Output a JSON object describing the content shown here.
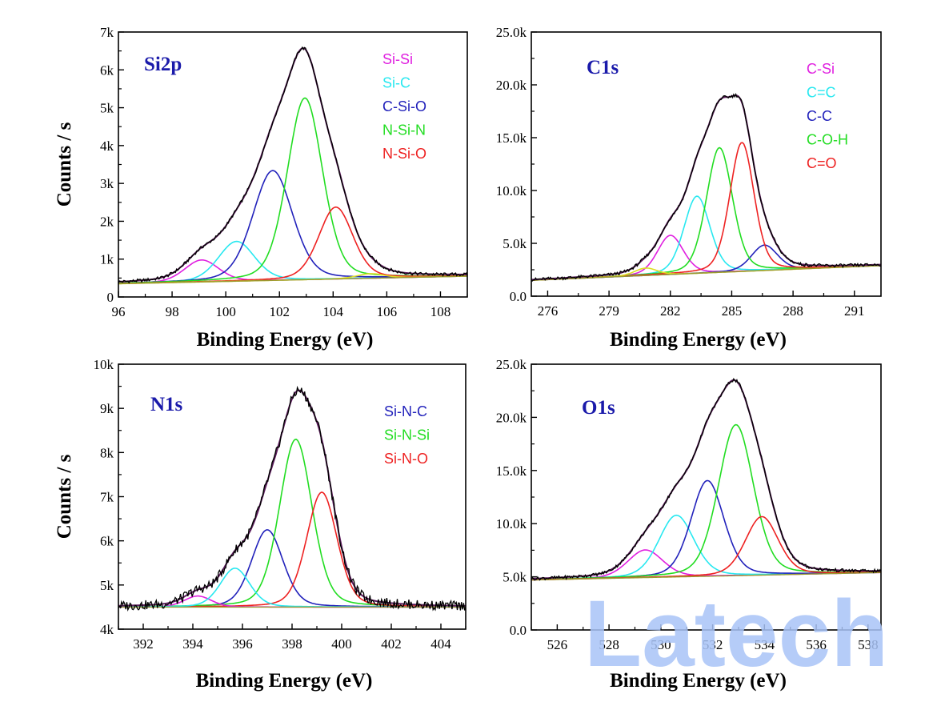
{
  "watermark": "Latech",
  "chart_data": [
    {
      "type": "line",
      "title": "Si2p",
      "xlabel": "Binding Energy (eV)",
      "ylabel": "Counts / s",
      "xlim": [
        96,
        109
      ],
      "ylim": [
        0,
        7000
      ],
      "x_ticks": [
        96,
        98,
        100,
        102,
        104,
        106,
        108
      ],
      "x_tick_labels": [
        "96",
        "98",
        "100",
        "102",
        "104",
        "106",
        "108"
      ],
      "y_ticks": [
        0,
        1000,
        2000,
        3000,
        4000,
        5000,
        6000,
        7000
      ],
      "y_tick_labels": [
        "0",
        "1k",
        "2k",
        "3k",
        "4k",
        "5k",
        "6k",
        "7k"
      ],
      "background": {
        "start": [
          96,
          350
        ],
        "end": [
          109,
          550
        ]
      },
      "series": [
        {
          "name": "Si-Si",
          "color": "#e020e0",
          "center": 99.1,
          "height": 580,
          "width": 1.5
        },
        {
          "name": "Si-C",
          "color": "#28e8f0",
          "center": 100.4,
          "height": 1050,
          "width": 1.6
        },
        {
          "name": "C-Si-O",
          "color": "#2222bb",
          "center": 101.75,
          "height": 2900,
          "width": 1.75
        },
        {
          "name": "N-Si-N",
          "color": "#22dd22",
          "center": 102.95,
          "height": 4800,
          "width": 1.55
        },
        {
          "name": "N-Si-O",
          "color": "#ee2222",
          "center": 104.1,
          "height": 1900,
          "width": 1.5
        }
      ],
      "extra_peaks": [
        {
          "color": "#dddd22",
          "center": 105.4,
          "height": 120,
          "width": 1.2
        }
      ],
      "legend_position": "top-right"
    },
    {
      "type": "line",
      "title": "C1s",
      "xlabel": "Binding Energy (eV)",
      "ylabel": "",
      "xlim": [
        275.2,
        292.3
      ],
      "ylim": [
        0,
        25000
      ],
      "x_ticks": [
        276,
        279,
        282,
        285,
        288,
        291
      ],
      "x_tick_labels": [
        "276",
        "279",
        "282",
        "285",
        "288",
        "291"
      ],
      "y_ticks": [
        0,
        5000,
        10000,
        15000,
        20000,
        25000
      ],
      "y_tick_labels": [
        "0.0",
        "5.0k",
        "10.0k",
        "15.0k",
        "20.0k",
        "25.0k"
      ],
      "background": {
        "start": [
          275.2,
          1500
        ],
        "end": [
          292.3,
          2900
        ]
      },
      "series": [
        {
          "name": "C-Si",
          "color": "#e020e0",
          "center": 282.0,
          "height": 3700,
          "width": 1.5
        },
        {
          "name": "C=C",
          "color": "#28e8f0",
          "center": 283.3,
          "height": 7300,
          "width": 1.5
        },
        {
          "name": "C-C",
          "color": "#2222bb",
          "center": 286.6,
          "height": 2400,
          "width": 1.5
        },
        {
          "name": "C-O-H",
          "color": "#22dd22",
          "center": 284.4,
          "height": 11800,
          "width": 1.5
        },
        {
          "name": "C=O",
          "color": "#ee2222",
          "center": 285.5,
          "height": 12200,
          "width": 1.4
        }
      ],
      "extra_peaks": [
        {
          "color": "#dddd22",
          "center": 280.8,
          "height": 700,
          "width": 1.3
        }
      ],
      "legend_position": "top-right"
    },
    {
      "type": "line",
      "title": "N1s",
      "xlabel": "Binding Energy (eV)",
      "ylabel": "Counts / s",
      "xlim": [
        391,
        405
      ],
      "ylim": [
        4000,
        10000
      ],
      "x_ticks": [
        392,
        394,
        396,
        398,
        400,
        402,
        404
      ],
      "x_tick_labels": [
        "392",
        "394",
        "396",
        "398",
        "400",
        "402",
        "404"
      ],
      "y_ticks": [
        4000,
        5000,
        6000,
        7000,
        8000,
        9000,
        10000
      ],
      "y_tick_labels": [
        "4k",
        "5k",
        "6k",
        "7k",
        "8k",
        "9k",
        "10k"
      ],
      "background": {
        "start": [
          391,
          4500
        ],
        "end": [
          405,
          4500
        ]
      },
      "series": [
        {
          "name": "Si-N-C",
          "color": "#2222bb",
          "center": 397.0,
          "height": 1750,
          "width": 1.5
        },
        {
          "name": "Si-N-Si",
          "color": "#22dd22",
          "center": 398.15,
          "height": 3800,
          "width": 1.55
        },
        {
          "name": "Si-N-O",
          "color": "#ee2222",
          "center": 399.2,
          "height": 2600,
          "width": 1.45
        }
      ],
      "extra_peaks": [
        {
          "color": "#e020e0",
          "center": 394.2,
          "height": 250,
          "width": 1.3
        },
        {
          "color": "#28e8f0",
          "center": 395.7,
          "height": 880,
          "width": 1.4
        }
      ],
      "legend_position": "top-right"
    },
    {
      "type": "line",
      "title": "O1s",
      "xlabel": "Binding Energy (eV)",
      "ylabel": "",
      "xlim": [
        525,
        538.5
      ],
      "ylim": [
        0,
        25000
      ],
      "x_ticks": [
        526,
        528,
        530,
        532,
        534,
        536,
        538
      ],
      "x_tick_labels": [
        "526",
        "528",
        "530",
        "532",
        "534",
        "536",
        "538"
      ],
      "y_ticks": [
        0,
        5000,
        10000,
        15000,
        20000,
        25000
      ],
      "y_tick_labels": [
        "0.0",
        "5.0k",
        "10.0k",
        "15.0k",
        "20.0k",
        "25.0k"
      ],
      "background": {
        "start": [
          525,
          4700
        ],
        "end": [
          538.5,
          5400
        ]
      },
      "series": [],
      "extra_peaks": [
        {
          "color": "#e020e0",
          "center": 529.4,
          "height": 2600,
          "width": 1.6
        },
        {
          "color": "#28e8f0",
          "center": 530.6,
          "height": 5800,
          "width": 1.6
        },
        {
          "color": "#2222bb",
          "center": 531.8,
          "height": 9000,
          "width": 1.5
        },
        {
          "color": "#22dd22",
          "center": 532.9,
          "height": 14200,
          "width": 1.6
        },
        {
          "color": "#ee2222",
          "center": 533.9,
          "height": 5500,
          "width": 1.5
        }
      ],
      "legend_position": "none"
    }
  ]
}
